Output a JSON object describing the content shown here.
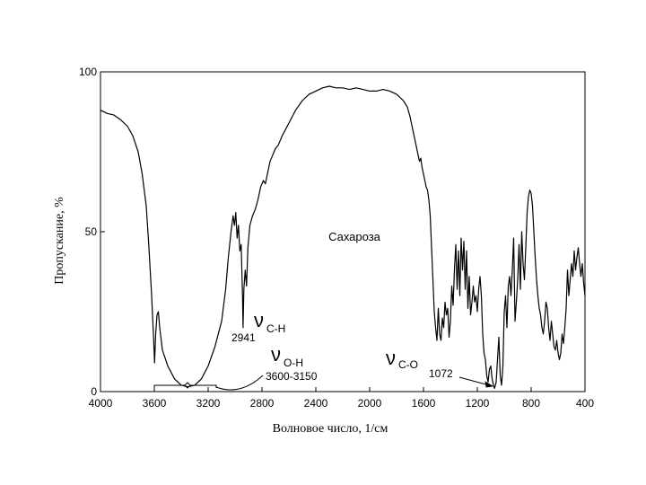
{
  "chart_data": {
    "type": "line",
    "title": "Сахароза",
    "xlabel": "Волновое число, 1/см",
    "ylabel": "Пропускание, %",
    "xlim": [
      4000,
      400
    ],
    "ylim": [
      0,
      100
    ],
    "x_ticks": [
      "4000",
      "3600",
      "3200",
      "2800",
      "2400",
      "2000",
      "1600",
      "1200",
      "800",
      "400"
    ],
    "y_ticks": [
      "0",
      "50",
      "100"
    ],
    "grid": false,
    "series": [
      {
        "points": [
          [
            4000,
            88
          ],
          [
            3950,
            87
          ],
          [
            3900,
            86.5
          ],
          [
            3850,
            85
          ],
          [
            3800,
            83
          ],
          [
            3760,
            80
          ],
          [
            3720,
            75
          ],
          [
            3690,
            68
          ],
          [
            3660,
            58
          ],
          [
            3640,
            45
          ],
          [
            3620,
            30
          ],
          [
            3605,
            16
          ],
          [
            3598,
            9
          ],
          [
            3590,
            18
          ],
          [
            3580,
            24
          ],
          [
            3570,
            25
          ],
          [
            3560,
            20
          ],
          [
            3540,
            13
          ],
          [
            3500,
            8
          ],
          [
            3450,
            4
          ],
          [
            3400,
            2
          ],
          [
            3350,
            1.5
          ],
          [
            3300,
            2
          ],
          [
            3250,
            4
          ],
          [
            3200,
            8
          ],
          [
            3150,
            14
          ],
          [
            3100,
            22
          ],
          [
            3070,
            32
          ],
          [
            3050,
            42
          ],
          [
            3030,
            50
          ],
          [
            3015,
            55
          ],
          [
            3005,
            52
          ],
          [
            2995,
            56
          ],
          [
            2985,
            48
          ],
          [
            2975,
            52
          ],
          [
            2965,
            44
          ],
          [
            2955,
            46
          ],
          [
            2945,
            30
          ],
          [
            2941,
            20
          ],
          [
            2935,
            32
          ],
          [
            2925,
            38
          ],
          [
            2915,
            33
          ],
          [
            2905,
            45
          ],
          [
            2890,
            52
          ],
          [
            2870,
            55
          ],
          [
            2850,
            57
          ],
          [
            2830,
            60
          ],
          [
            2810,
            64
          ],
          [
            2790,
            66
          ],
          [
            2775,
            65
          ],
          [
            2760,
            68
          ],
          [
            2740,
            72
          ],
          [
            2700,
            76
          ],
          [
            2680,
            77
          ],
          [
            2650,
            80
          ],
          [
            2600,
            84
          ],
          [
            2550,
            88
          ],
          [
            2500,
            91
          ],
          [
            2450,
            93
          ],
          [
            2400,
            94
          ],
          [
            2350,
            95
          ],
          [
            2300,
            95.5
          ],
          [
            2250,
            95
          ],
          [
            2200,
            95
          ],
          [
            2150,
            94.5
          ],
          [
            2100,
            95
          ],
          [
            2050,
            94.5
          ],
          [
            2000,
            94
          ],
          [
            1950,
            94
          ],
          [
            1900,
            94.5
          ],
          [
            1850,
            94
          ],
          [
            1800,
            93
          ],
          [
            1750,
            91
          ],
          [
            1720,
            89
          ],
          [
            1700,
            86
          ],
          [
            1680,
            82
          ],
          [
            1660,
            78
          ],
          [
            1640,
            74
          ],
          [
            1630,
            72
          ],
          [
            1620,
            73
          ],
          [
            1610,
            70
          ],
          [
            1600,
            68
          ],
          [
            1590,
            66
          ],
          [
            1580,
            64
          ],
          [
            1570,
            63
          ],
          [
            1560,
            60
          ],
          [
            1550,
            55
          ],
          [
            1540,
            45
          ],
          [
            1530,
            35
          ],
          [
            1520,
            25
          ],
          [
            1510,
            20
          ],
          [
            1500,
            16
          ],
          [
            1490,
            26
          ],
          [
            1480,
            18
          ],
          [
            1470,
            16
          ],
          [
            1460,
            23
          ],
          [
            1450,
            20
          ],
          [
            1440,
            28
          ],
          [
            1430,
            24
          ],
          [
            1420,
            26
          ],
          [
            1410,
            17
          ],
          [
            1400,
            22
          ],
          [
            1390,
            33
          ],
          [
            1380,
            27
          ],
          [
            1370,
            38
          ],
          [
            1360,
            46
          ],
          [
            1350,
            32
          ],
          [
            1340,
            44
          ],
          [
            1330,
            30
          ],
          [
            1320,
            48
          ],
          [
            1310,
            38
          ],
          [
            1300,
            47
          ],
          [
            1290,
            32
          ],
          [
            1280,
            44
          ],
          [
            1270,
            26
          ],
          [
            1260,
            36
          ],
          [
            1250,
            24
          ],
          [
            1240,
            28
          ],
          [
            1230,
            33
          ],
          [
            1220,
            28
          ],
          [
            1210,
            30
          ],
          [
            1200,
            25
          ],
          [
            1190,
            32
          ],
          [
            1180,
            36
          ],
          [
            1170,
            30
          ],
          [
            1160,
            18
          ],
          [
            1150,
            12
          ],
          [
            1140,
            10
          ],
          [
            1130,
            5
          ],
          [
            1120,
            3
          ],
          [
            1110,
            7
          ],
          [
            1100,
            8
          ],
          [
            1090,
            4
          ],
          [
            1080,
            2
          ],
          [
            1072,
            1
          ],
          [
            1060,
            3
          ],
          [
            1050,
            10
          ],
          [
            1040,
            17
          ],
          [
            1030,
            5
          ],
          [
            1020,
            2
          ],
          [
            1010,
            8
          ],
          [
            1000,
            25
          ],
          [
            990,
            30
          ],
          [
            980,
            20
          ],
          [
            970,
            33
          ],
          [
            960,
            36
          ],
          [
            950,
            30
          ],
          [
            940,
            38
          ],
          [
            930,
            48
          ],
          [
            920,
            22
          ],
          [
            910,
            28
          ],
          [
            900,
            35
          ],
          [
            890,
            46
          ],
          [
            880,
            32
          ],
          [
            870,
            50
          ],
          [
            860,
            40
          ],
          [
            850,
            35
          ],
          [
            840,
            45
          ],
          [
            830,
            56
          ],
          [
            820,
            61
          ],
          [
            810,
            63
          ],
          [
            800,
            62
          ],
          [
            790,
            58
          ],
          [
            780,
            50
          ],
          [
            770,
            42
          ],
          [
            760,
            35
          ],
          [
            750,
            30
          ],
          [
            740,
            26
          ],
          [
            730,
            24
          ],
          [
            720,
            20
          ],
          [
            710,
            18
          ],
          [
            700,
            22
          ],
          [
            690,
            28
          ],
          [
            680,
            26
          ],
          [
            670,
            20
          ],
          [
            660,
            16
          ],
          [
            650,
            22
          ],
          [
            640,
            18
          ],
          [
            630,
            14
          ],
          [
            620,
            13
          ],
          [
            610,
            16
          ],
          [
            600,
            12
          ],
          [
            590,
            10
          ],
          [
            580,
            12
          ],
          [
            570,
            18
          ],
          [
            560,
            15
          ],
          [
            550,
            20
          ],
          [
            540,
            26
          ],
          [
            530,
            38
          ],
          [
            520,
            30
          ],
          [
            510,
            35
          ],
          [
            500,
            40
          ],
          [
            490,
            36
          ],
          [
            480,
            44
          ],
          [
            470,
            38
          ],
          [
            460,
            42
          ],
          [
            450,
            45
          ],
          [
            440,
            40
          ],
          [
            430,
            36
          ],
          [
            420,
            40
          ],
          [
            410,
            34
          ],
          [
            400,
            30
          ]
        ]
      }
    ],
    "annotations": [
      {
        "label": "C-H",
        "text": "2941",
        "x": 2941,
        "y": 20
      },
      {
        "label": "O-H",
        "text": "3600-3150",
        "x": 3400,
        "y": 2
      },
      {
        "label": "C-O",
        "text": "1072",
        "x": 1072,
        "y": 1
      }
    ]
  }
}
